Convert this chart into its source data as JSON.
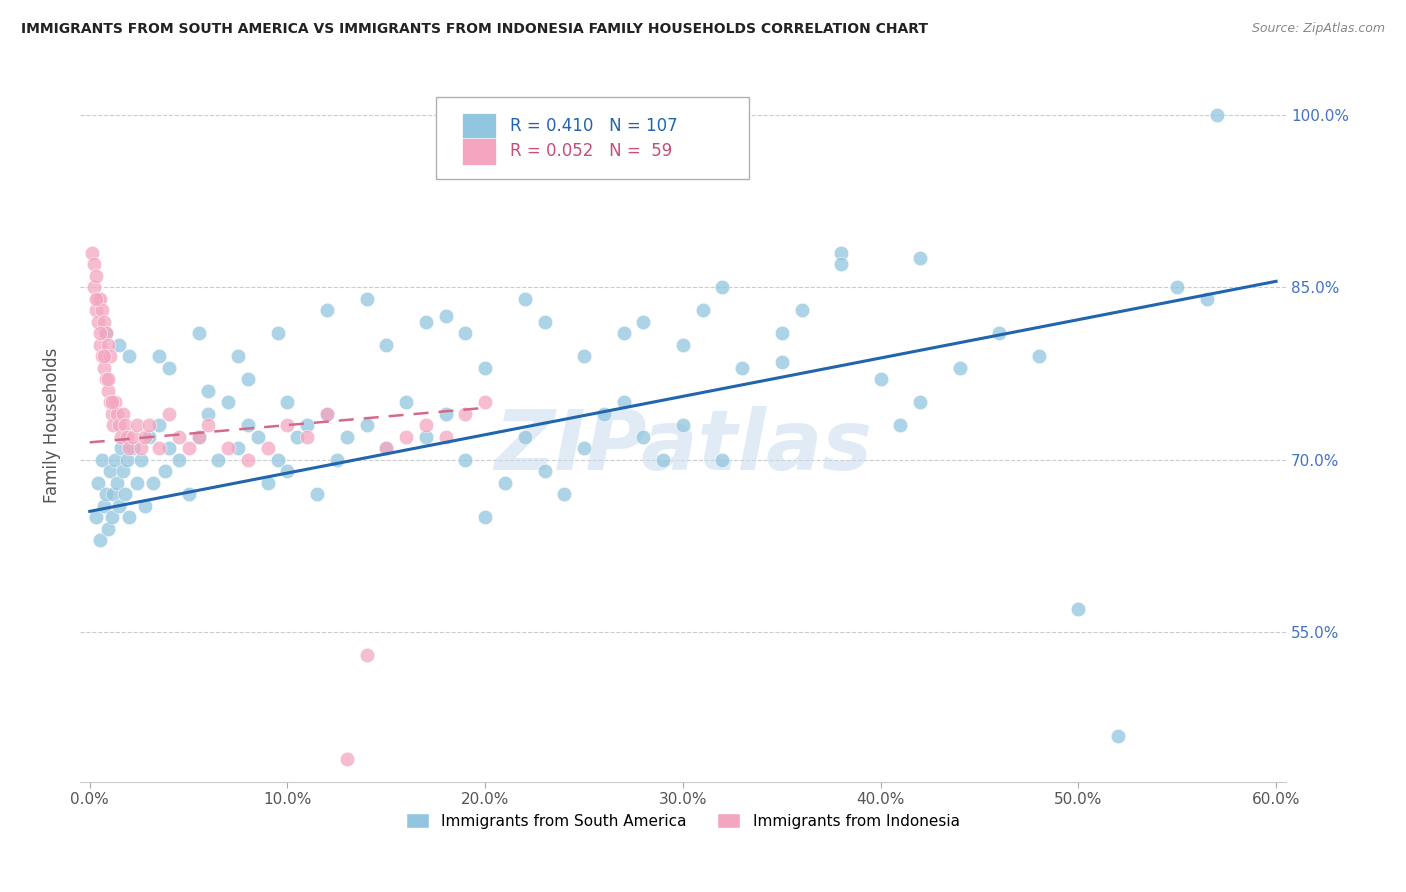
{
  "title": "IMMIGRANTS FROM SOUTH AMERICA VS IMMIGRANTS FROM INDONESIA FAMILY HOUSEHOLDS CORRELATION CHART",
  "source": "Source: ZipAtlas.com",
  "ylabel_label": "Family Households",
  "legend_blue_R": "0.410",
  "legend_blue_N": "107",
  "legend_pink_R": "0.052",
  "legend_pink_N": " 59",
  "blue_color": "#92C5DE",
  "pink_color": "#F4A6C0",
  "blue_line_color": "#2166AC",
  "pink_line_color": "#D46A8A",
  "watermark": "ZIPatlas",
  "xlim": [
    0,
    60
  ],
  "ylim": [
    42,
    104
  ],
  "x_ticks": [
    0,
    10,
    20,
    30,
    40,
    50,
    60
  ],
  "y_ticks": [
    55,
    70,
    85,
    100
  ],
  "blue_line_x0": 0,
  "blue_line_y0": 65.5,
  "blue_line_x1": 60,
  "blue_line_y1": 85.5,
  "pink_line_x0": 0,
  "pink_line_y0": 71.5,
  "pink_line_x1": 20,
  "pink_line_y1": 74.5,
  "sa_x": [
    0.3,
    0.4,
    0.5,
    0.6,
    0.7,
    0.8,
    0.9,
    1.0,
    1.1,
    1.2,
    1.3,
    1.4,
    1.5,
    1.6,
    1.7,
    1.8,
    1.9,
    2.0,
    2.2,
    2.4,
    2.6,
    2.8,
    3.0,
    3.2,
    3.5,
    3.8,
    4.0,
    4.5,
    5.0,
    5.5,
    6.0,
    6.5,
    7.0,
    7.5,
    8.0,
    8.5,
    9.0,
    9.5,
    10.0,
    10.5,
    11.0,
    11.5,
    12.0,
    12.5,
    13.0,
    14.0,
    15.0,
    16.0,
    17.0,
    18.0,
    19.0,
    20.0,
    21.0,
    22.0,
    23.0,
    24.0,
    25.0,
    26.0,
    27.0,
    28.0,
    29.0,
    30.0,
    32.0,
    33.0,
    35.0,
    36.0,
    38.0,
    40.0,
    41.0,
    42.0,
    44.0,
    46.0,
    48.0,
    50.0,
    52.0,
    55.0,
    56.5,
    57.0,
    20.0,
    25.0,
    30.0,
    35.0,
    15.0,
    18.0,
    22.0,
    28.0,
    32.0,
    38.0,
    42.0,
    10.0,
    8.0,
    6.0,
    4.0,
    2.0,
    1.5,
    0.8,
    3.5,
    5.5,
    7.5,
    9.5,
    12.0,
    14.0,
    17.0,
    19.0,
    23.0,
    27.0,
    31.0
  ],
  "sa_y": [
    65.0,
    68.0,
    63.0,
    70.0,
    66.0,
    67.0,
    64.0,
    69.0,
    65.0,
    67.0,
    70.0,
    68.0,
    66.0,
    71.0,
    69.0,
    67.0,
    70.0,
    65.0,
    71.0,
    68.0,
    70.0,
    66.0,
    72.0,
    68.0,
    73.0,
    69.0,
    71.0,
    70.0,
    67.0,
    72.0,
    74.0,
    70.0,
    75.0,
    71.0,
    73.0,
    72.0,
    68.0,
    70.0,
    69.0,
    72.0,
    73.0,
    67.0,
    74.0,
    70.0,
    72.0,
    73.0,
    71.0,
    75.0,
    72.0,
    74.0,
    70.0,
    65.0,
    68.0,
    72.0,
    69.0,
    67.0,
    71.0,
    74.0,
    75.0,
    72.0,
    70.0,
    73.0,
    70.0,
    78.0,
    81.0,
    83.0,
    88.0,
    77.0,
    73.0,
    75.0,
    78.0,
    81.0,
    79.0,
    57.0,
    46.0,
    85.0,
    84.0,
    100.0,
    78.0,
    79.0,
    80.0,
    78.5,
    80.0,
    82.5,
    84.0,
    82.0,
    85.0,
    87.0,
    87.5,
    75.0,
    77.0,
    76.0,
    78.0,
    79.0,
    80.0,
    81.0,
    79.0,
    81.0,
    79.0,
    81.0,
    83.0,
    84.0,
    82.0,
    81.0,
    82.0,
    81.0,
    83.0
  ],
  "id_x": [
    0.1,
    0.2,
    0.2,
    0.3,
    0.3,
    0.4,
    0.4,
    0.5,
    0.5,
    0.6,
    0.6,
    0.7,
    0.7,
    0.8,
    0.8,
    0.9,
    0.9,
    1.0,
    1.0,
    1.1,
    1.2,
    1.3,
    1.4,
    1.5,
    1.6,
    1.7,
    1.8,
    1.9,
    2.0,
    2.2,
    2.4,
    2.6,
    2.8,
    3.0,
    3.5,
    4.0,
    4.5,
    5.0,
    5.5,
    6.0,
    7.0,
    8.0,
    9.0,
    10.0,
    11.0,
    12.0,
    13.0,
    14.0,
    15.0,
    16.0,
    17.0,
    18.0,
    19.0,
    20.0,
    0.3,
    0.5,
    0.7,
    0.9,
    1.1
  ],
  "id_y": [
    88.0,
    85.0,
    87.0,
    83.0,
    86.0,
    82.0,
    84.0,
    80.0,
    84.0,
    79.0,
    83.0,
    78.0,
    82.0,
    77.0,
    81.0,
    76.0,
    80.0,
    75.0,
    79.0,
    74.0,
    73.0,
    75.0,
    74.0,
    73.0,
    72.0,
    74.0,
    73.0,
    72.0,
    71.0,
    72.0,
    73.0,
    71.0,
    72.0,
    73.0,
    71.0,
    74.0,
    72.0,
    71.0,
    72.0,
    73.0,
    71.0,
    70.0,
    71.0,
    73.0,
    72.0,
    74.0,
    44.0,
    53.0,
    71.0,
    72.0,
    73.0,
    72.0,
    74.0,
    75.0,
    84.0,
    81.0,
    79.0,
    77.0,
    75.0
  ]
}
